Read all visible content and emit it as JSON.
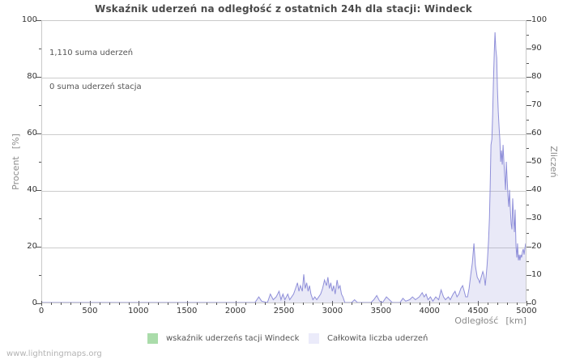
{
  "page": {
    "watermark": "www.lightningmaps.org"
  },
  "chart_data": {
    "type": "area",
    "title": "Wskaźnik uderzeń na odległość z ostatnich 24h dla stacji: Windeck",
    "annotations": [
      "1,110 suma uderzeń",
      "0 suma uderzeń stacja"
    ],
    "x_axis": {
      "label": "Odległość",
      "unit": "[km]",
      "min": 0,
      "max": 5000,
      "major_step": 500,
      "minor_step": 100,
      "tick_labels": [
        "0",
        "500",
        "1000",
        "1500",
        "2000",
        "2500",
        "3000",
        "3500",
        "4000",
        "4500",
        "5000"
      ]
    },
    "left_axis": {
      "label": "Procent",
      "unit": "[%]",
      "min": 0,
      "max": 100,
      "major_step": 20,
      "minor_step": 10,
      "tick_labels": [
        "0",
        "20",
        "40",
        "60",
        "80",
        "100"
      ]
    },
    "right_axis": {
      "label": "Zliczeń",
      "min": 0,
      "max": 100,
      "major_step": 10,
      "minor_step": 5,
      "tick_labels": [
        "0",
        "10",
        "20",
        "30",
        "40",
        "50",
        "60",
        "70",
        "80",
        "90",
        "100"
      ]
    },
    "grid": {
      "horizontal_values": [
        20,
        40,
        60,
        80
      ],
      "color": "#cccccc"
    },
    "legend": [
      {
        "label": "wskaźnik uderzeńs tacji Windeck",
        "swatch": "#aadcaa"
      },
      {
        "label": "Całkowita liczba uderzeń",
        "swatch": "#ebebfa"
      }
    ],
    "series": [
      {
        "name": "wskaźnik uderzeńs tacji Windeck",
        "axis": "left",
        "color": "#aadcaa",
        "fill": "rgba(170,220,170,0.25)",
        "points": [
          [
            0,
            0
          ],
          [
            5000,
            0
          ]
        ]
      },
      {
        "name": "Całkowita liczba uderzeń",
        "axis": "right",
        "color": "#8f8fd9",
        "fill": "rgba(145,145,215,0.2)",
        "points": [
          [
            0,
            0
          ],
          [
            2200,
            0
          ],
          [
            2240,
            2
          ],
          [
            2270,
            0.5
          ],
          [
            2330,
            0
          ],
          [
            2360,
            3
          ],
          [
            2390,
            1
          ],
          [
            2420,
            2
          ],
          [
            2450,
            4
          ],
          [
            2470,
            1
          ],
          [
            2490,
            3
          ],
          [
            2510,
            1
          ],
          [
            2540,
            3
          ],
          [
            2560,
            1
          ],
          [
            2580,
            2
          ],
          [
            2600,
            3
          ],
          [
            2620,
            5
          ],
          [
            2640,
            7
          ],
          [
            2655,
            4
          ],
          [
            2670,
            6
          ],
          [
            2690,
            4
          ],
          [
            2705,
            10
          ],
          [
            2720,
            5
          ],
          [
            2735,
            7
          ],
          [
            2750,
            4
          ],
          [
            2765,
            6
          ],
          [
            2780,
            3
          ],
          [
            2800,
            1
          ],
          [
            2820,
            2
          ],
          [
            2840,
            1
          ],
          [
            2860,
            2
          ],
          [
            2880,
            3
          ],
          [
            2900,
            5
          ],
          [
            2920,
            8
          ],
          [
            2940,
            6
          ],
          [
            2955,
            9
          ],
          [
            2970,
            5
          ],
          [
            2985,
            7
          ],
          [
            3000,
            4
          ],
          [
            3015,
            6
          ],
          [
            3030,
            3
          ],
          [
            3050,
            8
          ],
          [
            3065,
            5
          ],
          [
            3080,
            6
          ],
          [
            3095,
            3
          ],
          [
            3110,
            2
          ],
          [
            3130,
            0
          ],
          [
            3200,
            0
          ],
          [
            3230,
            1
          ],
          [
            3260,
            0
          ],
          [
            3400,
            0
          ],
          [
            3430,
            1
          ],
          [
            3460,
            2.5
          ],
          [
            3490,
            0.5
          ],
          [
            3520,
            0
          ],
          [
            3560,
            2
          ],
          [
            3590,
            1
          ],
          [
            3620,
            0
          ],
          [
            3700,
            0
          ],
          [
            3730,
            1.5
          ],
          [
            3760,
            0.5
          ],
          [
            3800,
            1
          ],
          [
            3830,
            2
          ],
          [
            3860,
            1
          ],
          [
            3900,
            2
          ],
          [
            3930,
            3.5
          ],
          [
            3950,
            2
          ],
          [
            3970,
            3
          ],
          [
            3990,
            1
          ],
          [
            4015,
            2
          ],
          [
            4040,
            0.5
          ],
          [
            4070,
            2
          ],
          [
            4100,
            1
          ],
          [
            4125,
            4.5
          ],
          [
            4150,
            2
          ],
          [
            4170,
            1
          ],
          [
            4200,
            2
          ],
          [
            4220,
            1
          ],
          [
            4250,
            3
          ],
          [
            4270,
            4
          ],
          [
            4290,
            2
          ],
          [
            4310,
            3
          ],
          [
            4330,
            5
          ],
          [
            4348,
            6
          ],
          [
            4365,
            4
          ],
          [
            4380,
            2
          ],
          [
            4398,
            2
          ],
          [
            4415,
            5
          ],
          [
            4432,
            10
          ],
          [
            4448,
            14
          ],
          [
            4465,
            21
          ],
          [
            4480,
            13
          ],
          [
            4499,
            9
          ],
          [
            4515,
            8
          ],
          [
            4524,
            7
          ],
          [
            4540,
            9
          ],
          [
            4557,
            11
          ],
          [
            4566,
            10
          ],
          [
            4575,
            8
          ],
          [
            4582,
            6
          ],
          [
            4590,
            9
          ],
          [
            4600,
            13
          ],
          [
            4608,
            17
          ],
          [
            4616,
            22
          ],
          [
            4625,
            30
          ],
          [
            4633,
            41
          ],
          [
            4641,
            56
          ],
          [
            4650,
            58
          ],
          [
            4658,
            66
          ],
          [
            4666,
            78
          ],
          [
            4675,
            89
          ],
          [
            4683,
            96
          ],
          [
            4691,
            90
          ],
          [
            4700,
            87
          ],
          [
            4708,
            76
          ],
          [
            4716,
            68
          ],
          [
            4725,
            62
          ],
          [
            4733,
            58
          ],
          [
            4741,
            50
          ],
          [
            4750,
            54
          ],
          [
            4758,
            49
          ],
          [
            4766,
            56
          ],
          [
            4775,
            50
          ],
          [
            4783,
            45
          ],
          [
            4791,
            40
          ],
          [
            4800,
            50
          ],
          [
            4808,
            44
          ],
          [
            4816,
            38
          ],
          [
            4825,
            34
          ],
          [
            4833,
            40
          ],
          [
            4841,
            33
          ],
          [
            4850,
            28
          ],
          [
            4858,
            26
          ],
          [
            4866,
            37
          ],
          [
            4875,
            30
          ],
          [
            4883,
            25
          ],
          [
            4891,
            33
          ],
          [
            4900,
            20
          ],
          [
            4908,
            16
          ],
          [
            4916,
            21
          ],
          [
            4925,
            15
          ],
          [
            4933,
            17
          ],
          [
            4941,
            15
          ],
          [
            4950,
            17
          ],
          [
            4958,
            16
          ],
          [
            4966,
            18
          ],
          [
            4975,
            19
          ],
          [
            4983,
            17
          ],
          [
            4991,
            19
          ],
          [
            5000,
            21
          ]
        ]
      }
    ]
  }
}
